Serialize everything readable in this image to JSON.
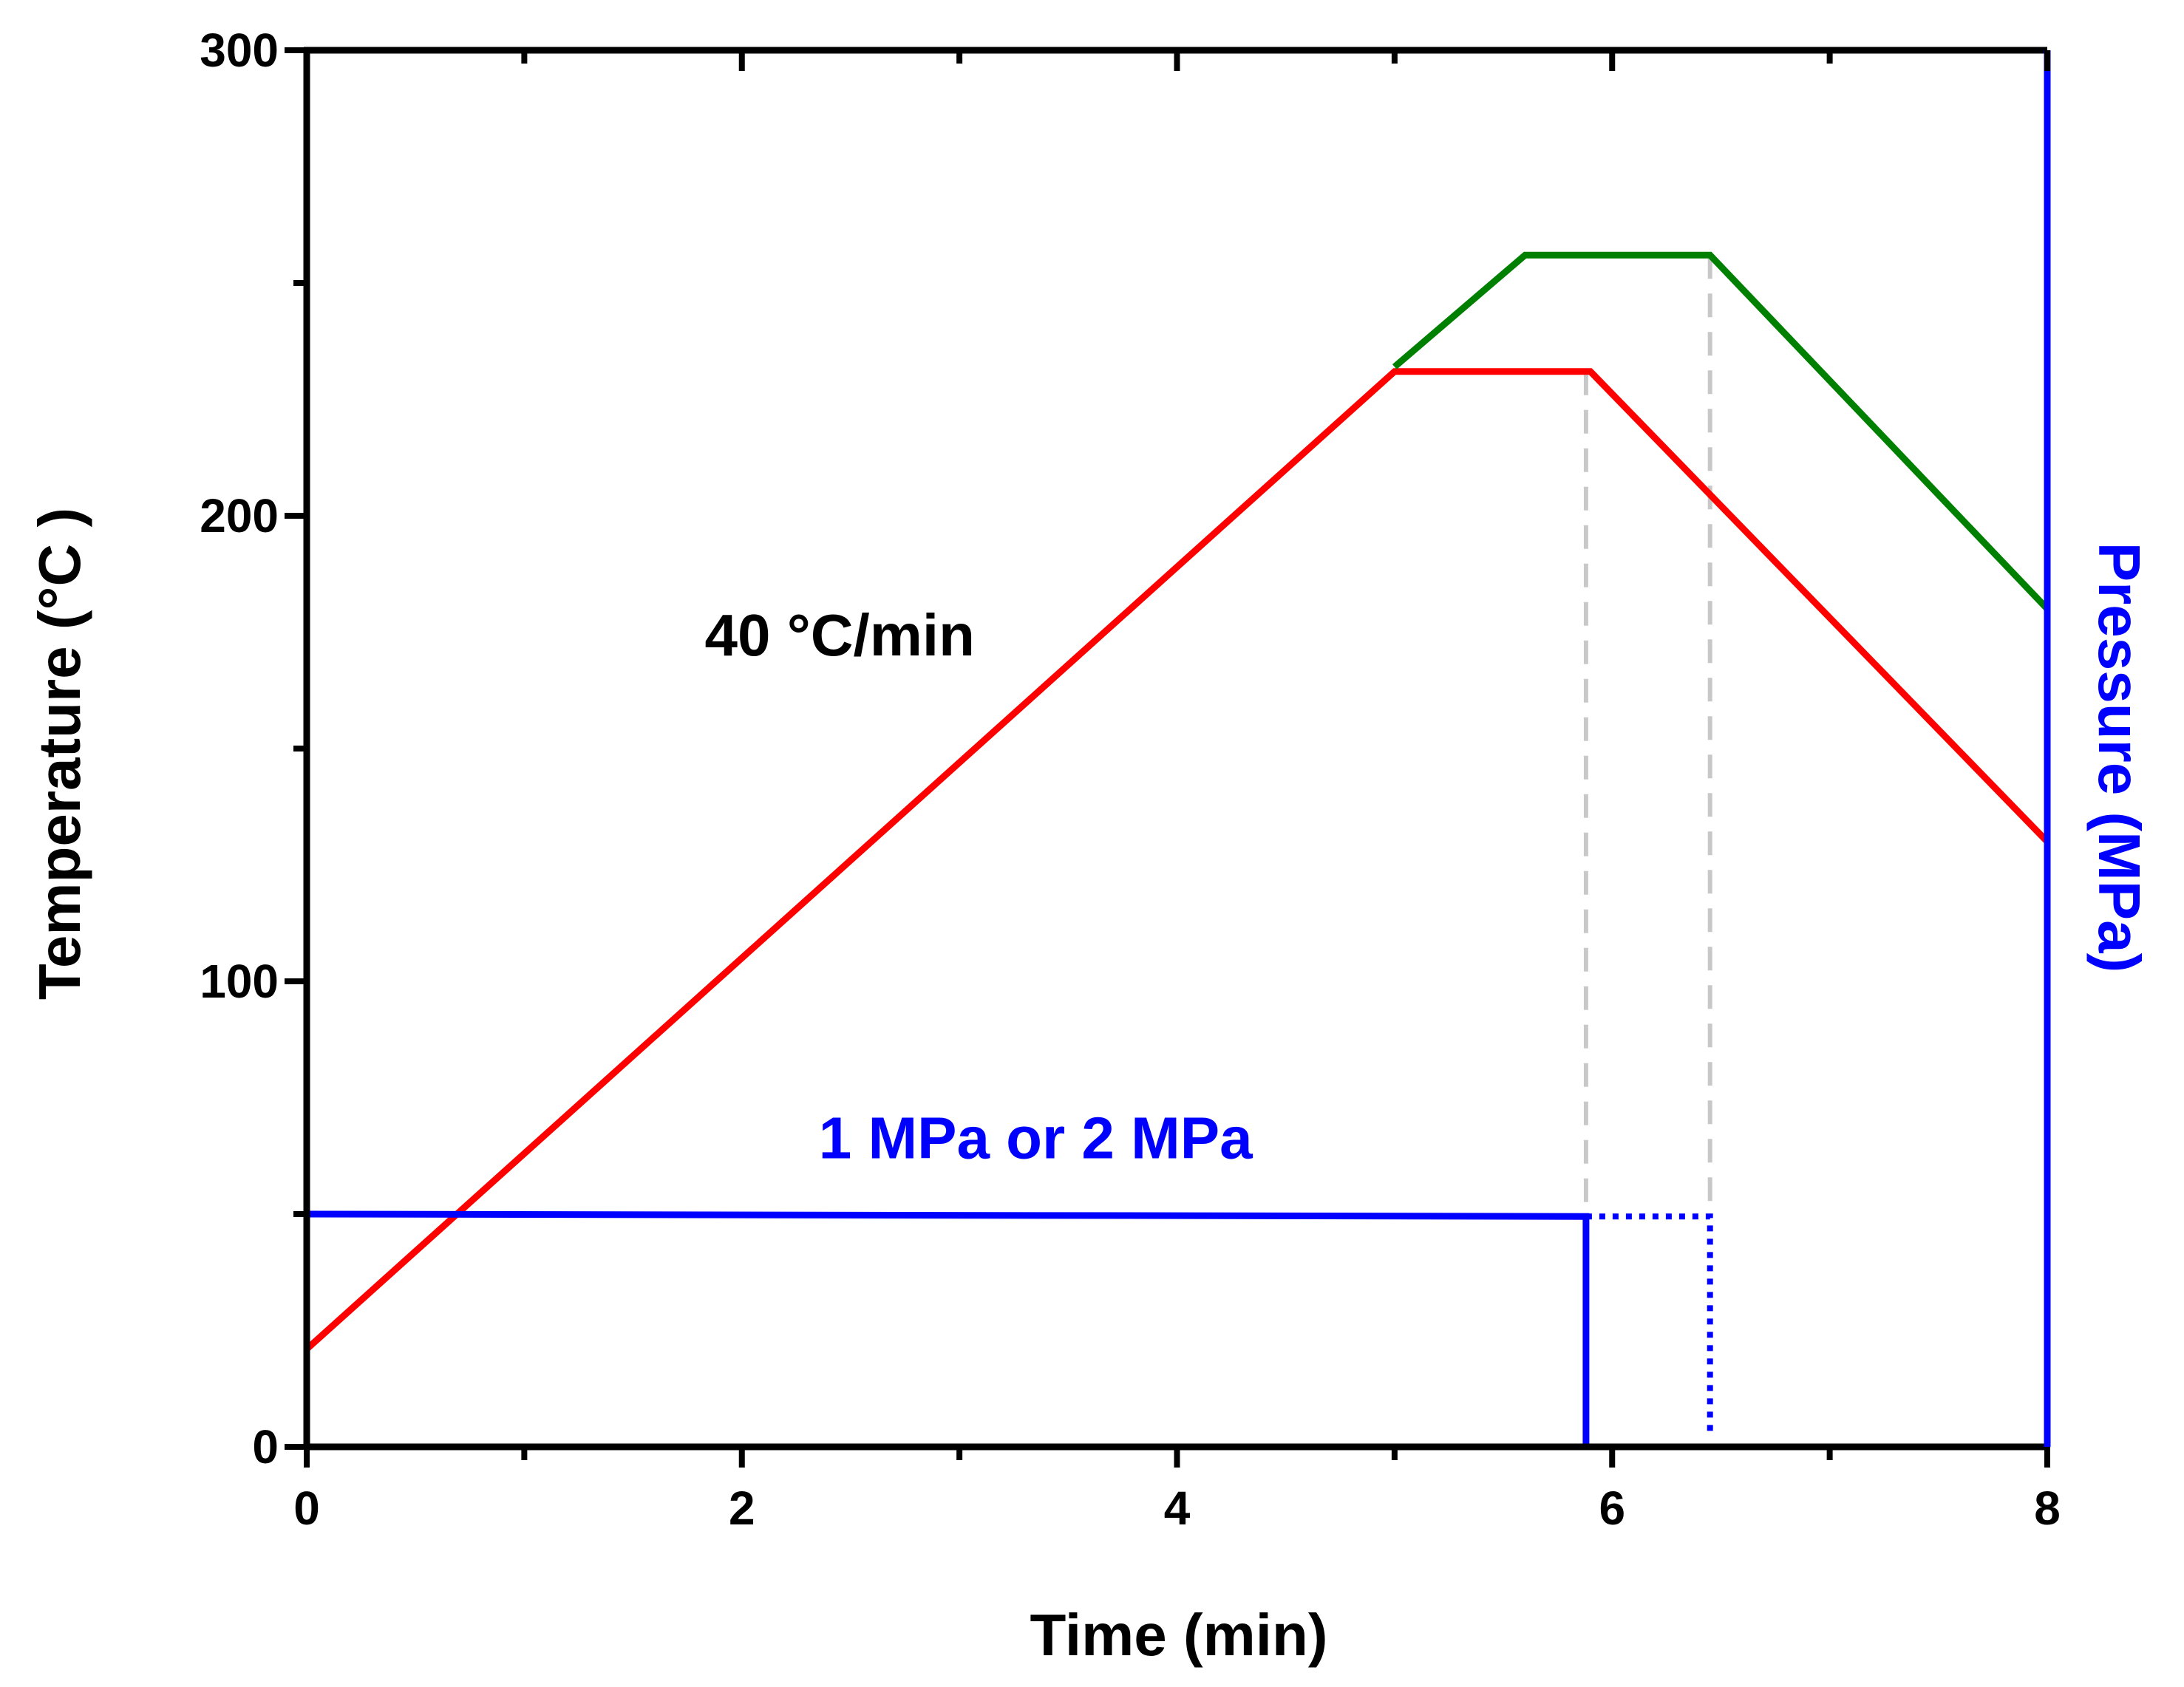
{
  "chart_data": {
    "type": "line",
    "title": "",
    "xlabel": "Time (min)",
    "ylabel": "Temperature (°C )",
    "y2label": "Pressure (MPa)",
    "xlim": [
      0,
      8
    ],
    "ylim": [
      0,
      300
    ],
    "x_ticks": [
      "0",
      "2",
      "4",
      "6",
      "8"
    ],
    "y_ticks": [
      "0",
      "100",
      "200",
      "300"
    ],
    "grid": false,
    "colors": {
      "axes": "#000000",
      "pressure_axis": "#0000ff",
      "red_profile": "#ff0000",
      "green_profile": "#008000",
      "pressure": "#0000ff",
      "guides": "#c8c8c8"
    },
    "series": [
      {
        "name": "temperature-profile-red",
        "style": "solid",
        "x": [
          0,
          5.0,
          5.9,
          8.0
        ],
        "y": [
          21,
          231,
          231,
          130
        ]
      },
      {
        "name": "temperature-profile-green",
        "style": "solid",
        "x": [
          5.0,
          5.6,
          6.45,
          8.0
        ],
        "y": [
          232,
          256,
          256,
          180
        ]
      },
      {
        "name": "pressure-solid",
        "style": "solid",
        "x": [
          0,
          5.88,
          5.88
        ],
        "y": [
          50,
          49.5,
          0
        ]
      },
      {
        "name": "pressure-dotted",
        "style": "dotted",
        "x": [
          5.88,
          6.45,
          6.45
        ],
        "y": [
          49.5,
          49.5,
          3
        ]
      },
      {
        "name": "guide-line-1",
        "style": "dashed",
        "x": [
          5.88,
          5.88
        ],
        "y": [
          231,
          50
        ]
      },
      {
        "name": "guide-line-2",
        "style": "dashed",
        "x": [
          6.45,
          6.45
        ],
        "y": [
          256,
          50
        ]
      }
    ],
    "annotations": [
      {
        "text": "40 °C/min",
        "x": 2.45,
        "y": 170,
        "color": "#000000"
      },
      {
        "text": "1 MPa or 2 MPa",
        "x": 3.35,
        "y": 62,
        "color": "#0000ff"
      }
    ]
  }
}
